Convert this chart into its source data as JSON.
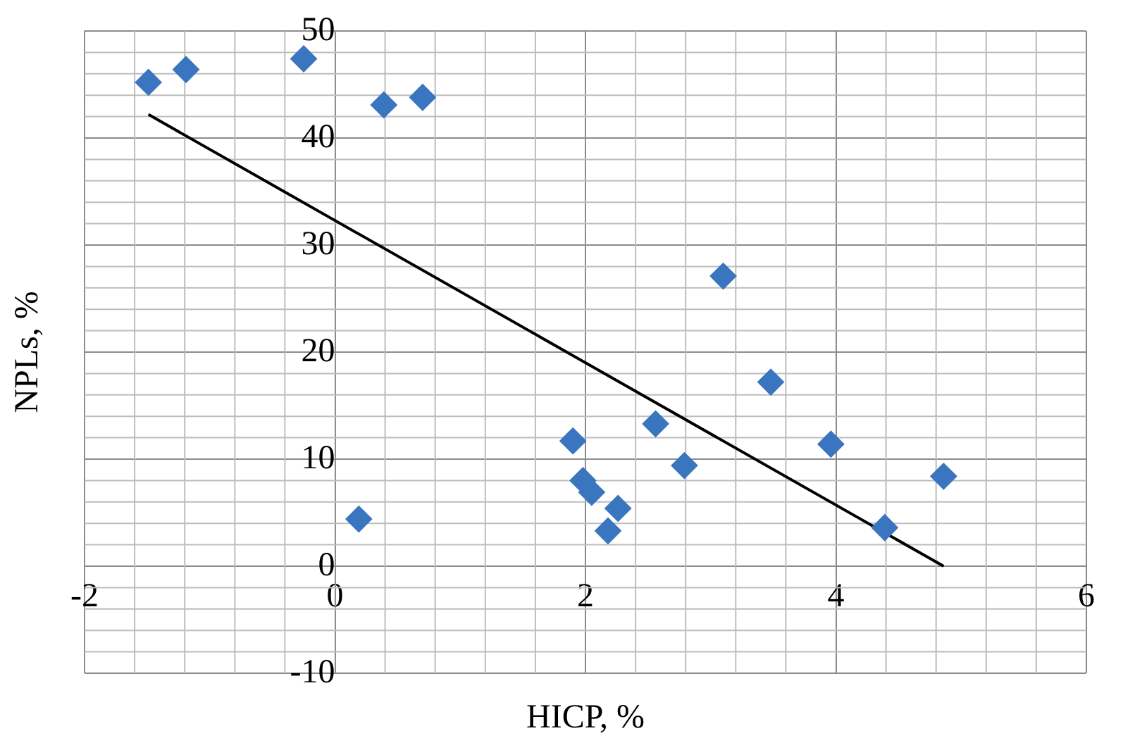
{
  "chart_data": {
    "type": "scatter",
    "xlabel": "HICP, %",
    "ylabel": "NPLs, %",
    "xlim": [
      -2,
      6
    ],
    "ylim": [
      -10,
      50
    ],
    "xticks": [
      -2,
      0,
      2,
      4,
      6
    ],
    "yticks": [
      -10,
      0,
      10,
      20,
      30,
      40,
      50
    ],
    "grid": true,
    "legend": false,
    "marker": "diamond",
    "series": [
      {
        "color": "#3a75c0",
        "x": [
          -1.49,
          -1.19,
          -0.25,
          0.39,
          0.7,
          0.19,
          3.1,
          3.48,
          1.9,
          2.56,
          2.79,
          3.96,
          4.86,
          4.39,
          1.98,
          2.05,
          2.26,
          2.18
        ],
        "values": [
          45.2,
          46.4,
          47.4,
          43.1,
          43.8,
          4.4,
          27.1,
          17.2,
          11.7,
          13.3,
          9.4,
          11.4,
          8.4,
          3.6,
          8.0,
          6.9,
          5.4,
          3.3
        ]
      },
      {
        "type": "line",
        "color": "#000000",
        "marker": "none",
        "x": [
          -1.49,
          4.86
        ],
        "values": [
          42.2,
          0
        ]
      }
    ]
  }
}
